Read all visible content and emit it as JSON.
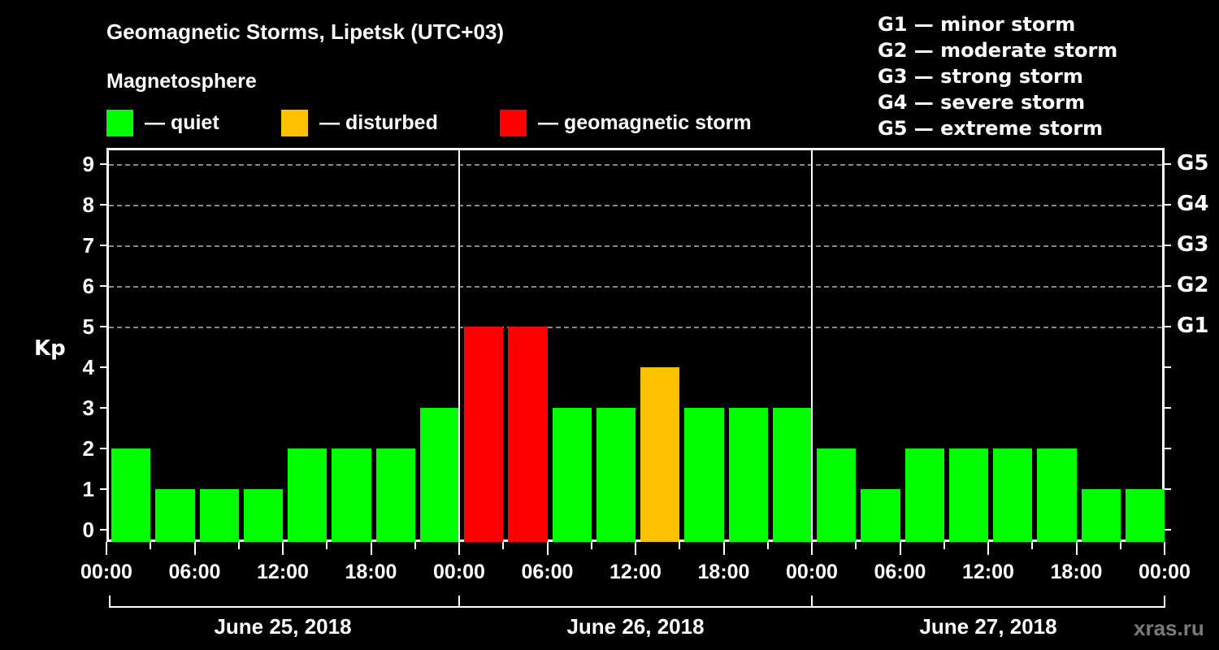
{
  "chart_data": {
    "type": "bar",
    "title": "Geomagnetic Storms, Lipetsk (UTC+03)",
    "subtitle": "Magnetosphere",
    "ylabel": "Kp",
    "xlabel": "",
    "ylim": [
      0,
      9
    ],
    "yticks": [
      "0",
      "1",
      "2",
      "3",
      "4",
      "5",
      "6",
      "7",
      "8",
      "9"
    ],
    "right_axis_labels": [
      {
        "kp": 5,
        "label": "G1"
      },
      {
        "kp": 6,
        "label": "G2"
      },
      {
        "kp": 7,
        "label": "G3"
      },
      {
        "kp": 8,
        "label": "G4"
      },
      {
        "kp": 9,
        "label": "G5"
      }
    ],
    "grid": "dashed horizontal at Kp 5-9",
    "xtick_labels": [
      "00:00",
      "06:00",
      "12:00",
      "18:00",
      "00:00",
      "06:00",
      "12:00",
      "18:00",
      "00:00",
      "06:00",
      "12:00",
      "18:00",
      "00:00"
    ],
    "days": [
      "June 25, 2018",
      "June 26, 2018",
      "June 27, 2018"
    ],
    "categories": [
      "06-25 00:00",
      "06-25 03:00",
      "06-25 06:00",
      "06-25 09:00",
      "06-25 12:00",
      "06-25 15:00",
      "06-25 18:00",
      "06-25 21:00",
      "06-26 00:00",
      "06-26 03:00",
      "06-26 06:00",
      "06-26 09:00",
      "06-26 12:00",
      "06-26 15:00",
      "06-26 18:00",
      "06-26 21:00",
      "06-27 00:00",
      "06-27 03:00",
      "06-27 06:00",
      "06-27 09:00",
      "06-27 12:00",
      "06-27 15:00",
      "06-27 18:00",
      "06-27 21:00"
    ],
    "values": [
      2,
      1,
      1,
      1,
      2,
      2,
      2,
      3,
      5,
      5,
      3,
      3,
      4,
      3,
      3,
      3,
      2,
      1,
      2,
      2,
      2,
      2,
      1,
      1
    ],
    "status": [
      "quiet",
      "quiet",
      "quiet",
      "quiet",
      "quiet",
      "quiet",
      "quiet",
      "quiet",
      "storm",
      "storm",
      "quiet",
      "quiet",
      "disturbed",
      "quiet",
      "quiet",
      "quiet",
      "quiet",
      "quiet",
      "quiet",
      "quiet",
      "quiet",
      "quiet",
      "quiet",
      "quiet"
    ],
    "legend": [
      {
        "key": "quiet",
        "label": "— quiet",
        "color": "#00ff00"
      },
      {
        "key": "disturbed",
        "label": "— disturbed",
        "color": "#ffc000"
      },
      {
        "key": "storm",
        "label": "— geomagnetic storm",
        "color": "#ff0000"
      }
    ],
    "scale_legend": [
      "G1 — minor storm",
      "G2 — moderate storm",
      "G3 — strong storm",
      "G4 — severe storm",
      "G5 — extreme storm"
    ]
  },
  "watermark": "xras.ru"
}
